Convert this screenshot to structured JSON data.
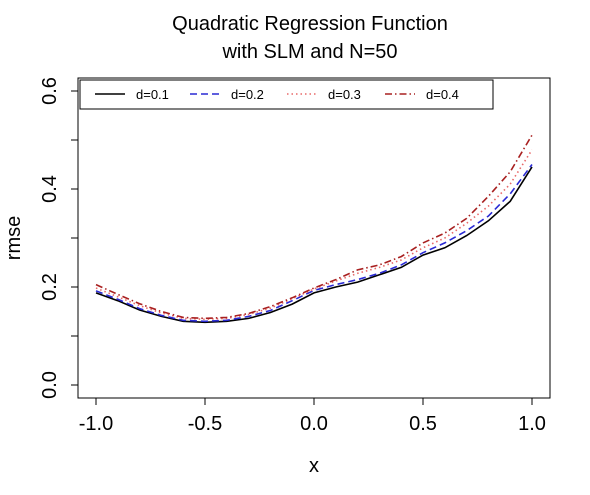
{
  "chart_data": {
    "type": "line",
    "title": "Quadratic Regression Function",
    "subtitle": "with SLM and N=50",
    "xlabel": "x",
    "ylabel": "rmse",
    "xlim": [
      -1.0,
      1.0
    ],
    "ylim": [
      0.0,
      0.6
    ],
    "x_ticks": [
      "-1.0",
      "-0.5",
      "0.0",
      "0.5",
      "1.0"
    ],
    "y_ticks": [
      "0.0",
      "0.2",
      "0.4",
      "0.6"
    ],
    "legend_position": "top",
    "x": [
      -1.0,
      -0.9,
      -0.8,
      -0.7,
      -0.6,
      -0.5,
      -0.4,
      -0.3,
      -0.2,
      -0.1,
      0.0,
      0.1,
      0.2,
      0.3,
      0.4,
      0.5,
      0.6,
      0.7,
      0.8,
      0.9,
      1.0
    ],
    "series": [
      {
        "name": "d=0.1",
        "color": "#000000",
        "dash": "solid",
        "values": [
          0.188,
          0.172,
          0.153,
          0.14,
          0.13,
          0.128,
          0.13,
          0.136,
          0.148,
          0.165,
          0.188,
          0.2,
          0.21,
          0.225,
          0.24,
          0.265,
          0.28,
          0.305,
          0.335,
          0.375,
          0.445
        ]
      },
      {
        "name": "d=0.2",
        "color": "#2a2ad4",
        "dash": "dashed",
        "values": [
          0.192,
          0.175,
          0.156,
          0.142,
          0.132,
          0.13,
          0.132,
          0.14,
          0.152,
          0.172,
          0.193,
          0.205,
          0.215,
          0.228,
          0.245,
          0.27,
          0.29,
          0.315,
          0.345,
          0.39,
          0.45
        ]
      },
      {
        "name": "d=0.3",
        "color": "#e86868",
        "dash": "dotted",
        "values": [
          0.198,
          0.18,
          0.162,
          0.147,
          0.136,
          0.134,
          0.136,
          0.144,
          0.157,
          0.176,
          0.196,
          0.212,
          0.228,
          0.24,
          0.255,
          0.28,
          0.3,
          0.33,
          0.365,
          0.41,
          0.48
        ]
      },
      {
        "name": "d=0.4",
        "color": "#a82020",
        "dash": "dotdash",
        "values": [
          0.205,
          0.185,
          0.166,
          0.15,
          0.138,
          0.136,
          0.138,
          0.146,
          0.16,
          0.178,
          0.198,
          0.215,
          0.235,
          0.245,
          0.262,
          0.29,
          0.31,
          0.34,
          0.385,
          0.435,
          0.51
        ]
      }
    ]
  }
}
